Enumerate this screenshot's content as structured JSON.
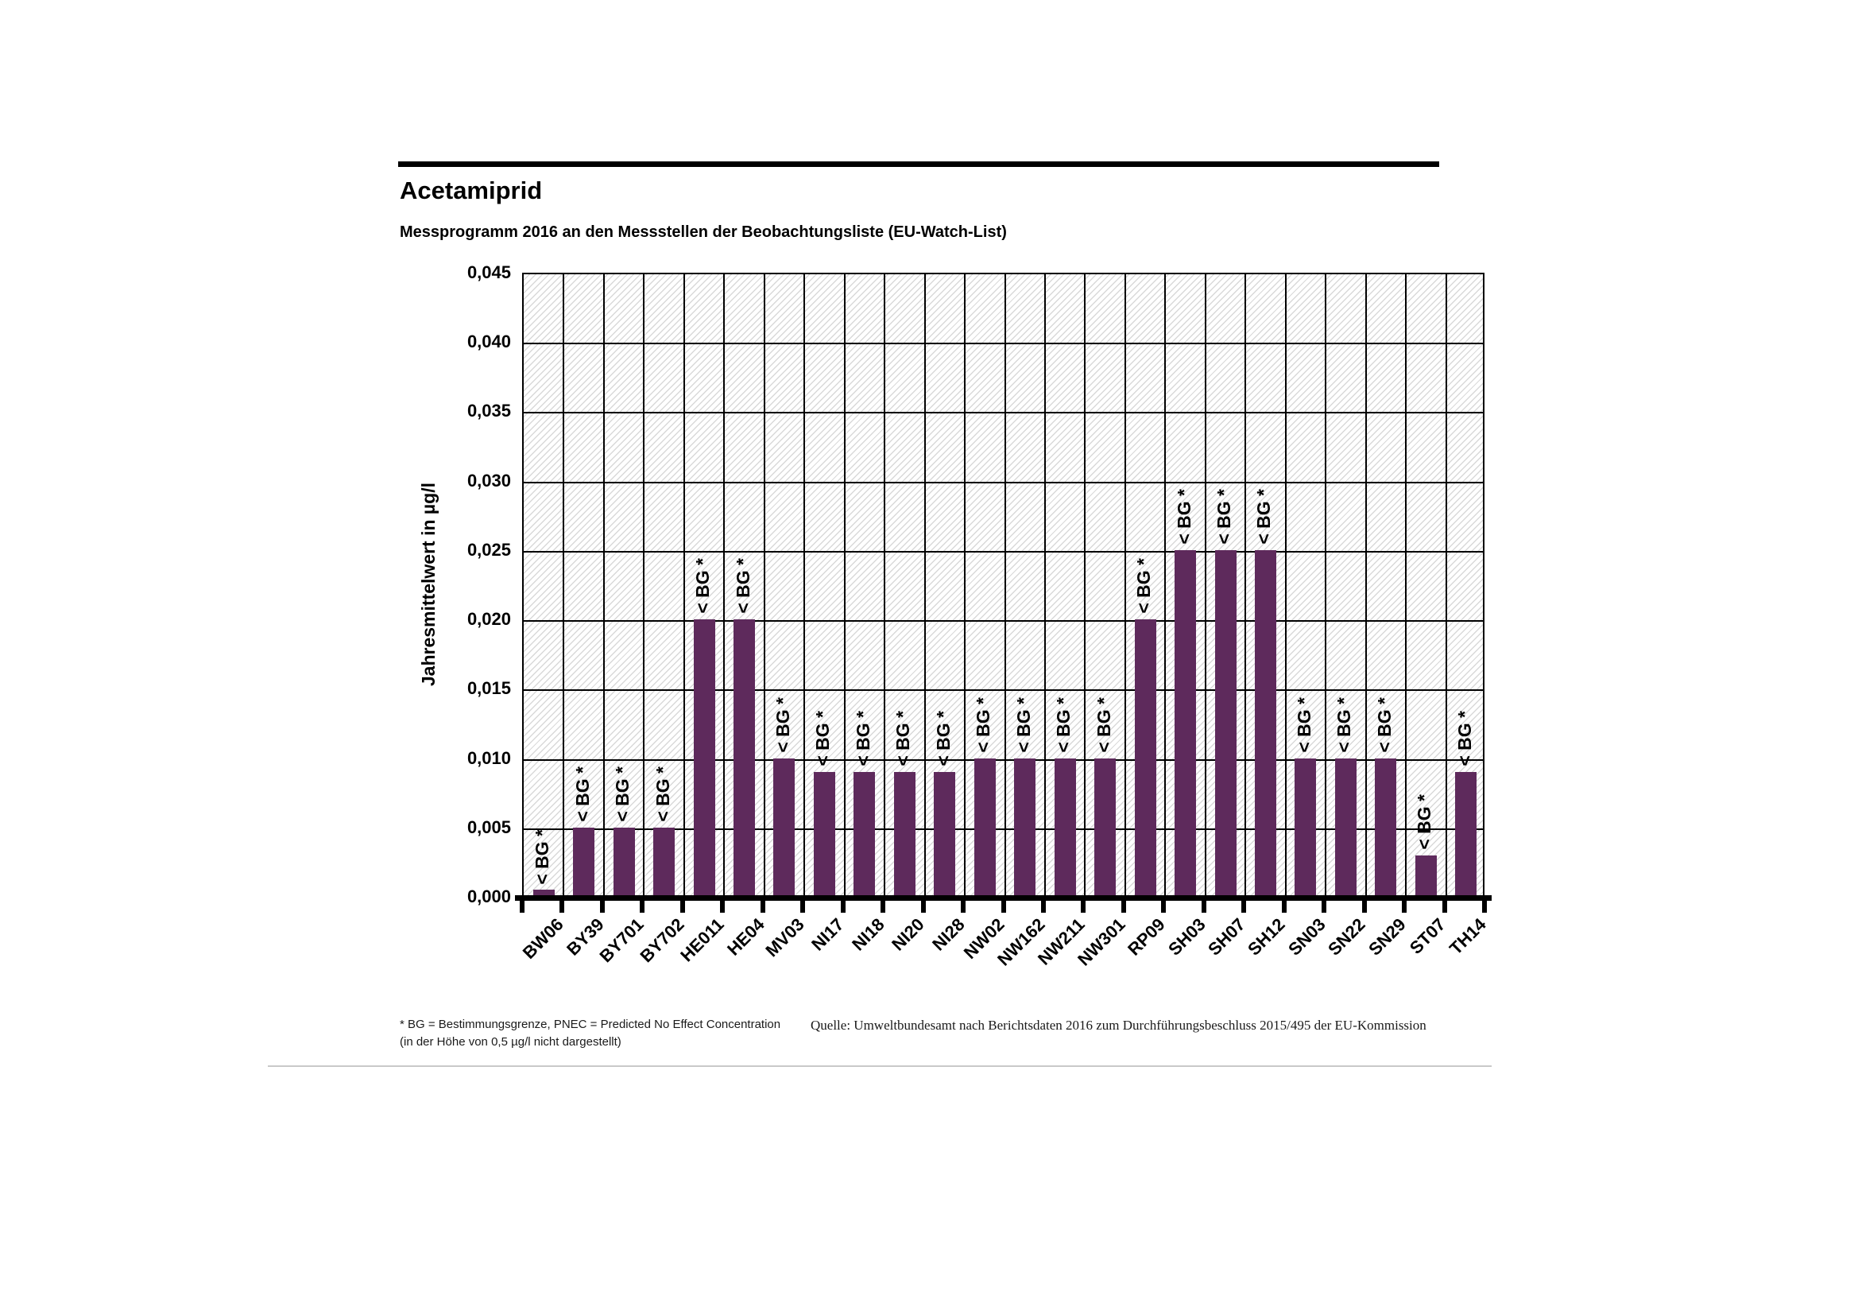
{
  "header": {
    "title": "Acetamiprid",
    "subtitle": "Messprogramm 2016 an den Messstellen der Beobachtungsliste (EU-Watch-List)"
  },
  "footer": {
    "footnote_line1": "* BG = Bestimmungsgrenze, PNEC = Predicted No Effect Concentration",
    "footnote_line2": "(in der Höhe von 0,5 µg/l nicht dargestellt)",
    "source": "Quelle: Umweltbundesamt nach Berichtsdaten 2016 zum Durchführungsbeschluss 2015/495 der EU-Kommission"
  },
  "chart_data": {
    "type": "bar",
    "title": "Acetamiprid",
    "subtitle": "Messprogramm 2016 an den Messstellen der Beobachtungsliste (EU-Watch-List)",
    "ylabel": "Jahresmittelwert in µg/l",
    "xlabel": "",
    "ylim": [
      0,
      0.045
    ],
    "ytick_step": 0.005,
    "decimal_separator": ",",
    "grid": true,
    "plot_background": "diagonal-hatch",
    "legend": "none",
    "categories": [
      "BW06",
      "BY39",
      "BY701",
      "BY702",
      "HE011",
      "HE04",
      "MV03",
      "NI17",
      "NI18",
      "NI20",
      "NI28",
      "NW02",
      "NW162",
      "NW211",
      "NW301",
      "RP09",
      "SH03",
      "SH07",
      "SH12",
      "SN03",
      "SN22",
      "SN29",
      "ST07",
      "TH14"
    ],
    "values": [
      0.0005,
      0.005,
      0.005,
      0.005,
      0.02,
      0.02,
      0.01,
      0.009,
      0.009,
      0.009,
      0.009,
      0.01,
      0.01,
      0.01,
      0.01,
      0.02,
      0.025,
      0.025,
      0.025,
      0.01,
      0.01,
      0.01,
      0.003,
      0.009
    ],
    "bar_annotations": [
      "< BG *",
      "< BG *",
      "< BG *",
      "< BG *",
      "< BG *",
      "< BG *",
      "< BG *",
      "< BG *",
      "< BG *",
      "< BG *",
      "< BG *",
      "< BG *",
      "< BG *",
      "< BG *",
      "< BG *",
      "< BG *",
      "< BG *",
      "< BG *",
      "< BG *",
      "< BG *",
      "< BG *",
      "< BG *",
      "< BG *",
      "< BG *"
    ],
    "colors": {
      "bar": "#5E2A5C",
      "gridline": "#000000",
      "hatch": "#D9D9D9",
      "axis": "#000000"
    }
  }
}
